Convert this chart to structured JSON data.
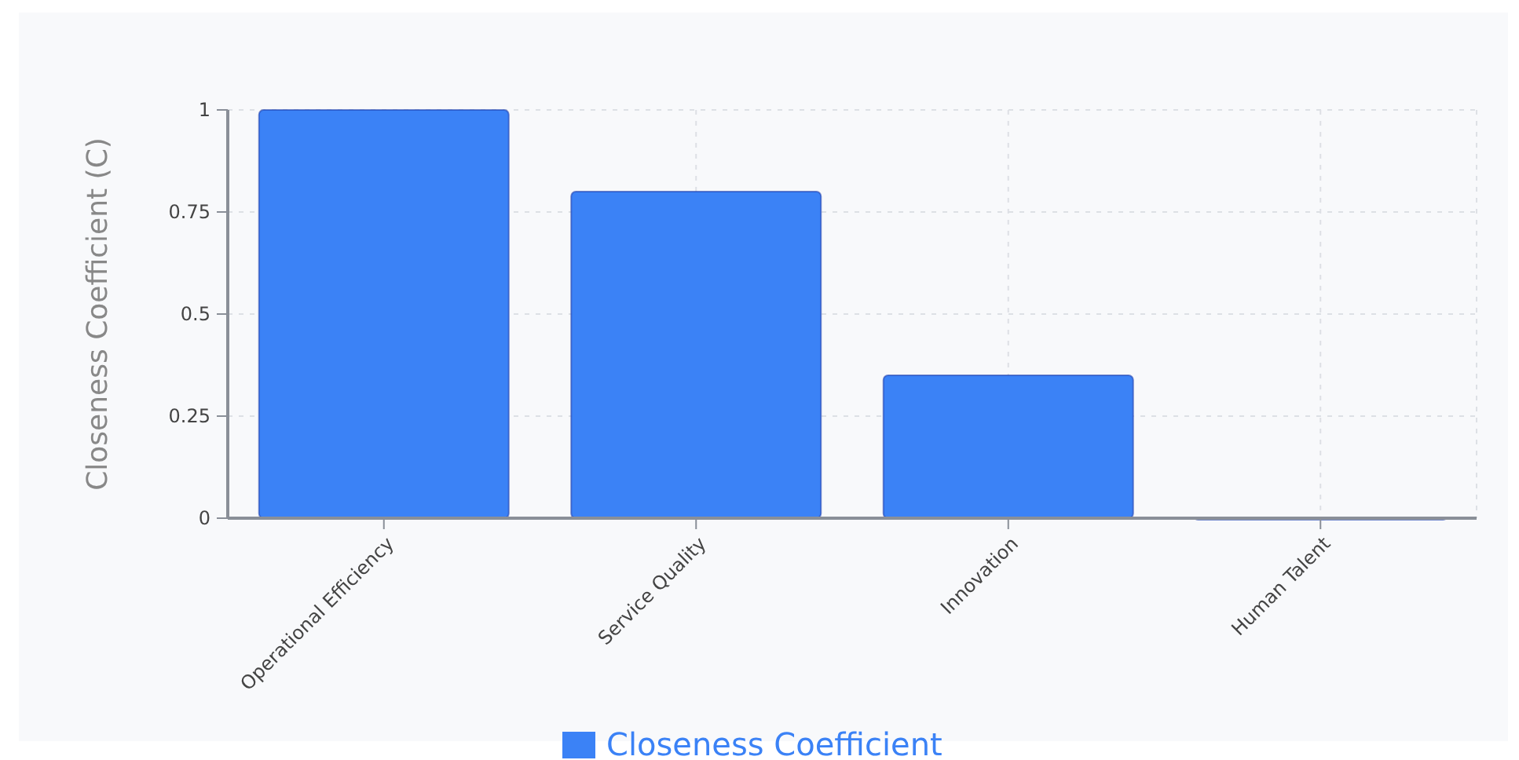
{
  "chart_data": {
    "type": "bar",
    "ylabel": "Closeness Coefficient (C)",
    "categories": [
      "Operational Efficiency",
      "Service Quality",
      "Innovation",
      "Human Talent"
    ],
    "series": [
      {
        "name": "Closeness Coefficient",
        "color": "#3b82f6",
        "values": [
          1,
          0.8,
          0.35,
          0
        ]
      }
    ],
    "ylim": [
      0,
      1
    ],
    "yticks": [
      0,
      0.25,
      0.5,
      0.75,
      1
    ],
    "grid": true,
    "legend": "bottom"
  }
}
